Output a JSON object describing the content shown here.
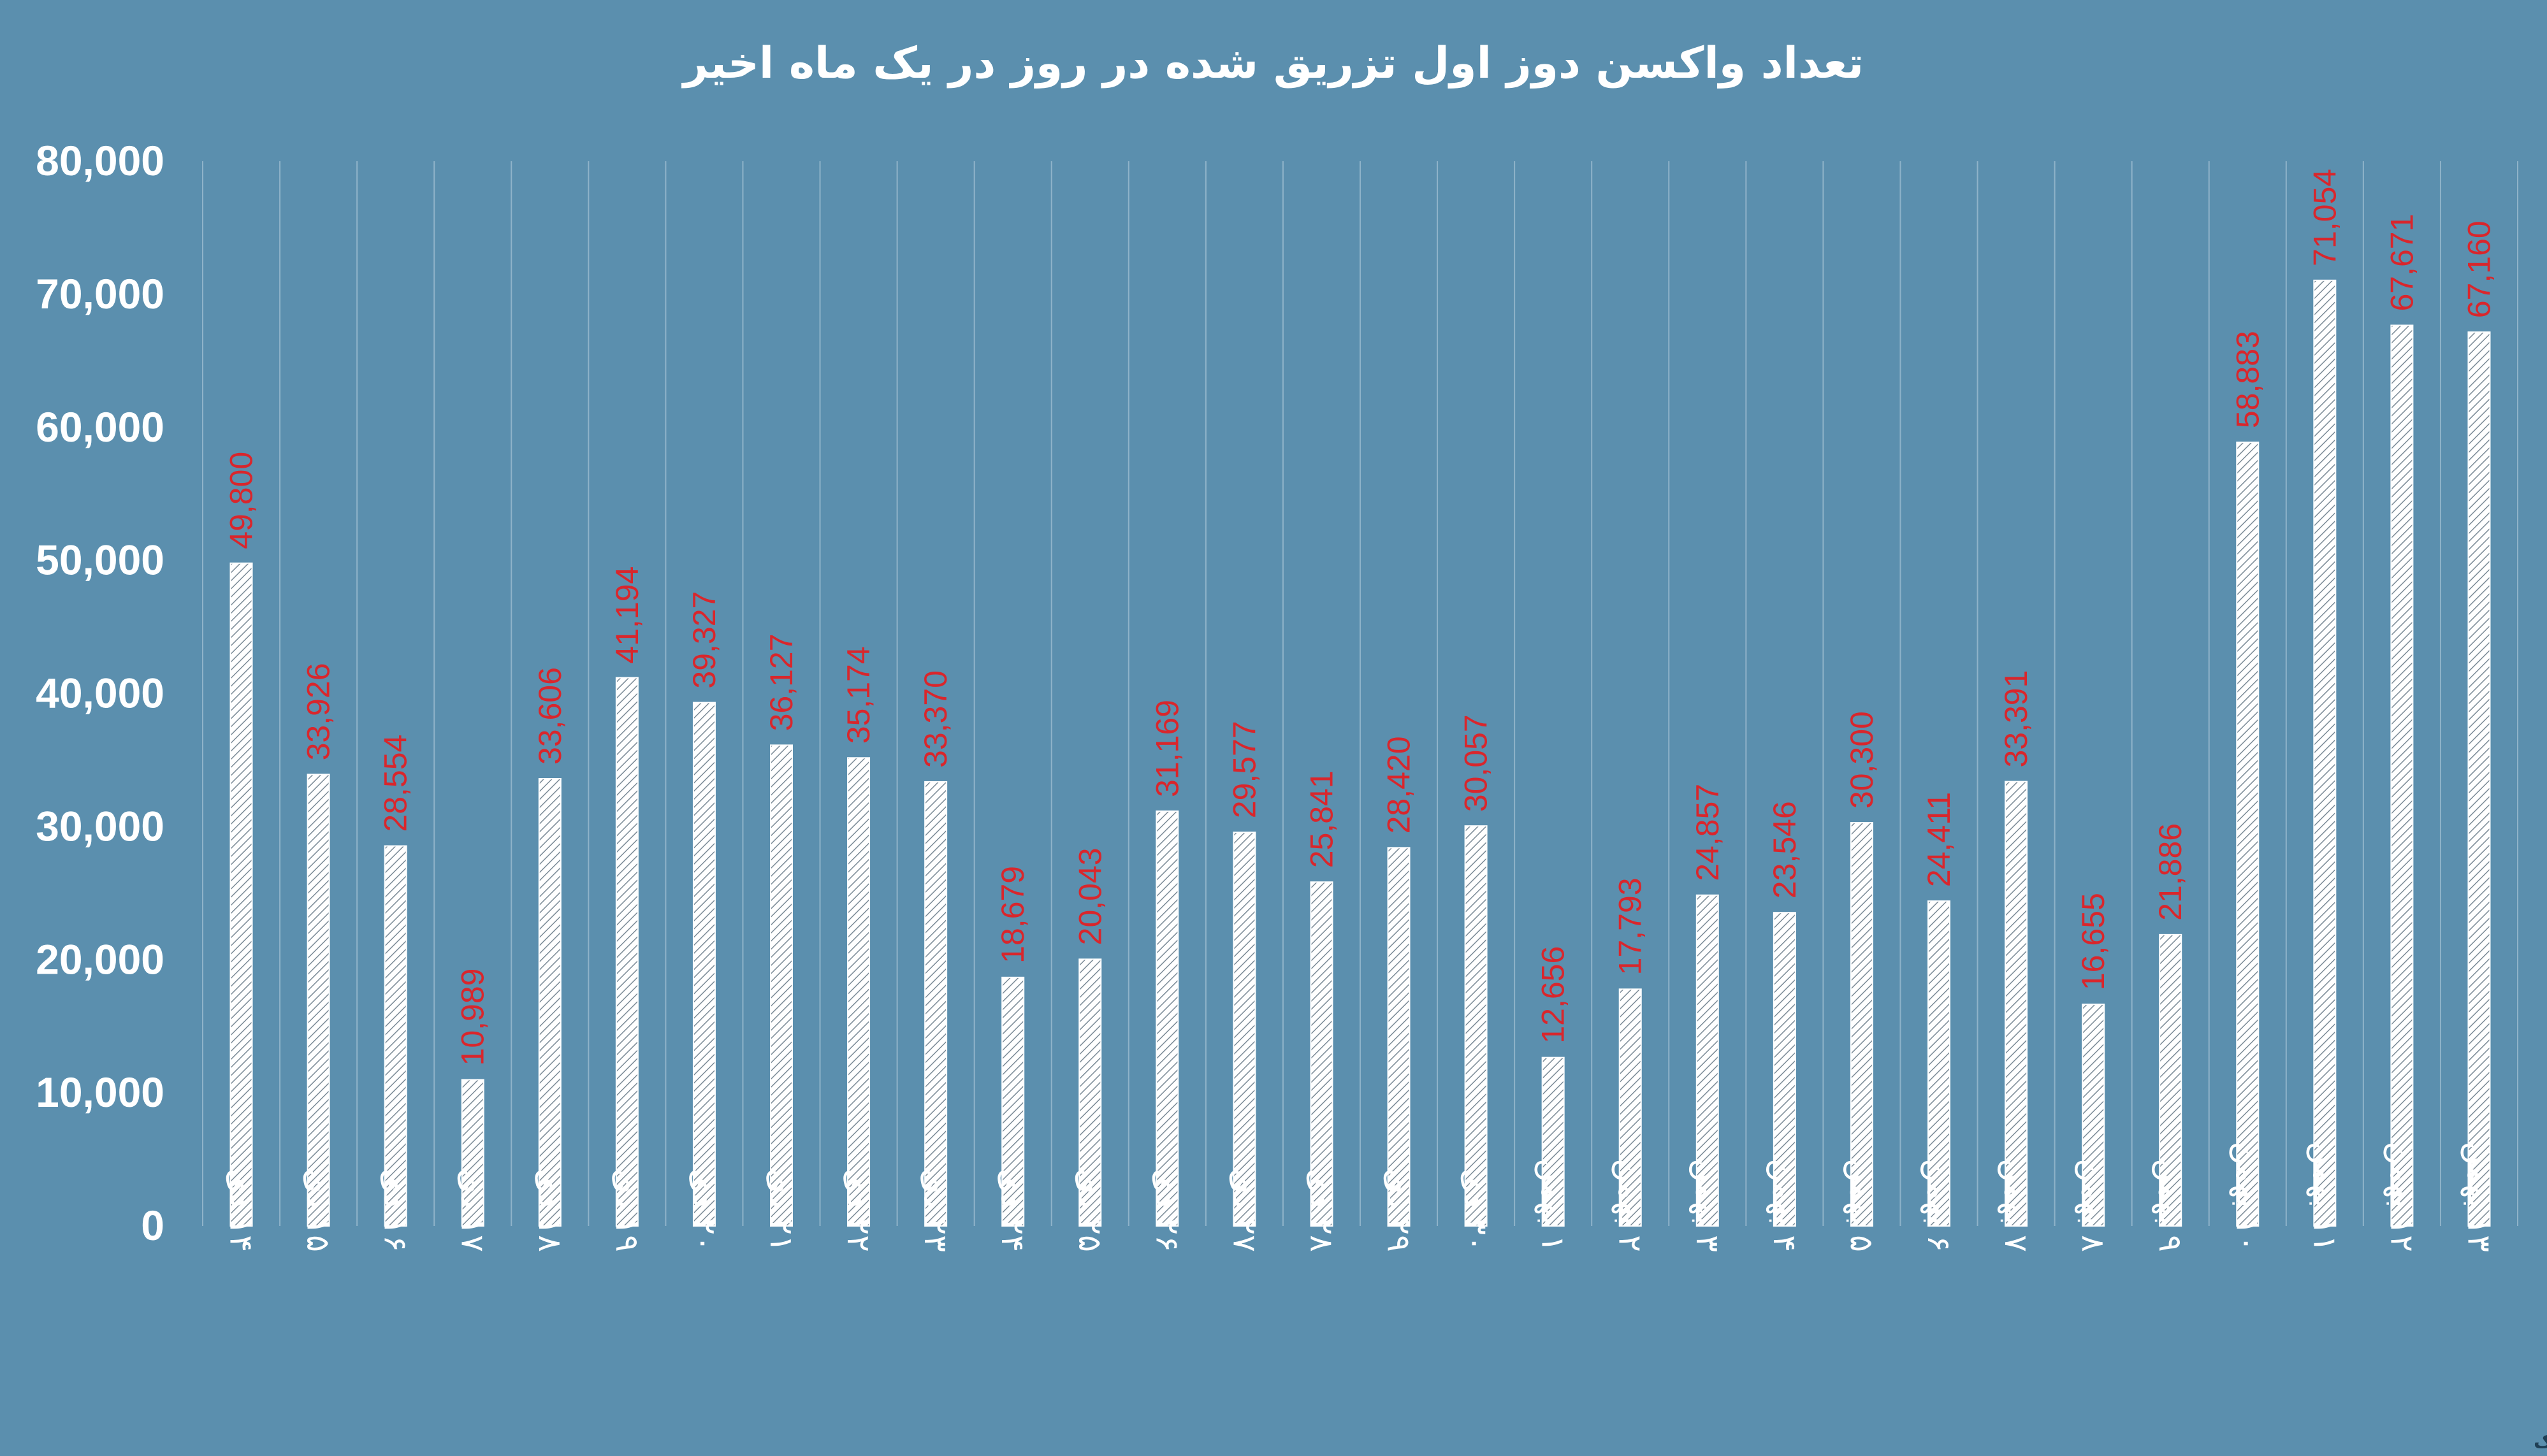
{
  "colors": {
    "background": "#5b8fae",
    "bar_fill": "#ffffff",
    "bar_hatch": "#7a8a96",
    "data_label": "#d9262c",
    "gridline": "#8fb3c9",
    "text": "#ffffff"
  },
  "watermark": "تابناک",
  "chart_data": {
    "type": "bar",
    "title": "تعداد واکسن دوز اول تزریق شده در روز در یک ماه اخیر",
    "xlabel": "",
    "ylabel": "",
    "ylim": [
      0,
      80000
    ],
    "yticks": [
      0,
      10000,
      20000,
      30000,
      40000,
      50000,
      60000,
      70000,
      80000
    ],
    "ytick_labels": [
      "0",
      "10,000",
      "20,000",
      "30,000",
      "40,000",
      "50,000",
      "60,000",
      "70,000",
      "80,000"
    ],
    "grid": "vertical",
    "legend": "none",
    "categories": [
      "۱۴ دی",
      "۱۵ دی",
      "۱۶ دی",
      "۱۷ دی",
      "۱۸ دی",
      "۱۹ دی",
      "۲۰ دی",
      "۲۱ دی",
      "۲۲ دی",
      "۲۳ دی",
      "۲۴ دی",
      "۲۵ دی",
      "۲۶ دی",
      "۲۷ دی",
      "۲۸ دی",
      "۲۹ دی",
      "۳۰ دی",
      "۱ بهمن",
      "۲ بهمن",
      "۳ بهمن",
      "۴ بهمن",
      "۵ بهمن",
      "۶ بهمن",
      "۷ بهمن",
      "۸ بهمن",
      "۹ بهمن",
      "۱۰ بهمن",
      "۱۱ بهمن",
      "۱۲ بهمن",
      "۱۳ بهمن"
    ],
    "values": [
      49800,
      33926,
      28554,
      10989,
      33606,
      41194,
      39327,
      36127,
      35174,
      33370,
      18679,
      20043,
      31169,
      29577,
      25841,
      28420,
      30057,
      12656,
      17793,
      24857,
      23546,
      30300,
      24411,
      33391,
      16655,
      21886,
      58883,
      71054,
      67671,
      67160
    ],
    "value_labels": [
      "49,800",
      "33,926",
      "28,554",
      "10,989",
      "33,606",
      "41,194",
      "39,327",
      "36,127",
      "35,174",
      "33,370",
      "18,679",
      "20,043",
      "31,169",
      "29,577",
      "25,841",
      "28,420",
      "30,057",
      "12,656",
      "17,793",
      "24,857",
      "23,546",
      "30,300",
      "24,411",
      "33,391",
      "16,655",
      "21,886",
      "58,883",
      "71,054",
      "67,671",
      "67,160"
    ]
  }
}
